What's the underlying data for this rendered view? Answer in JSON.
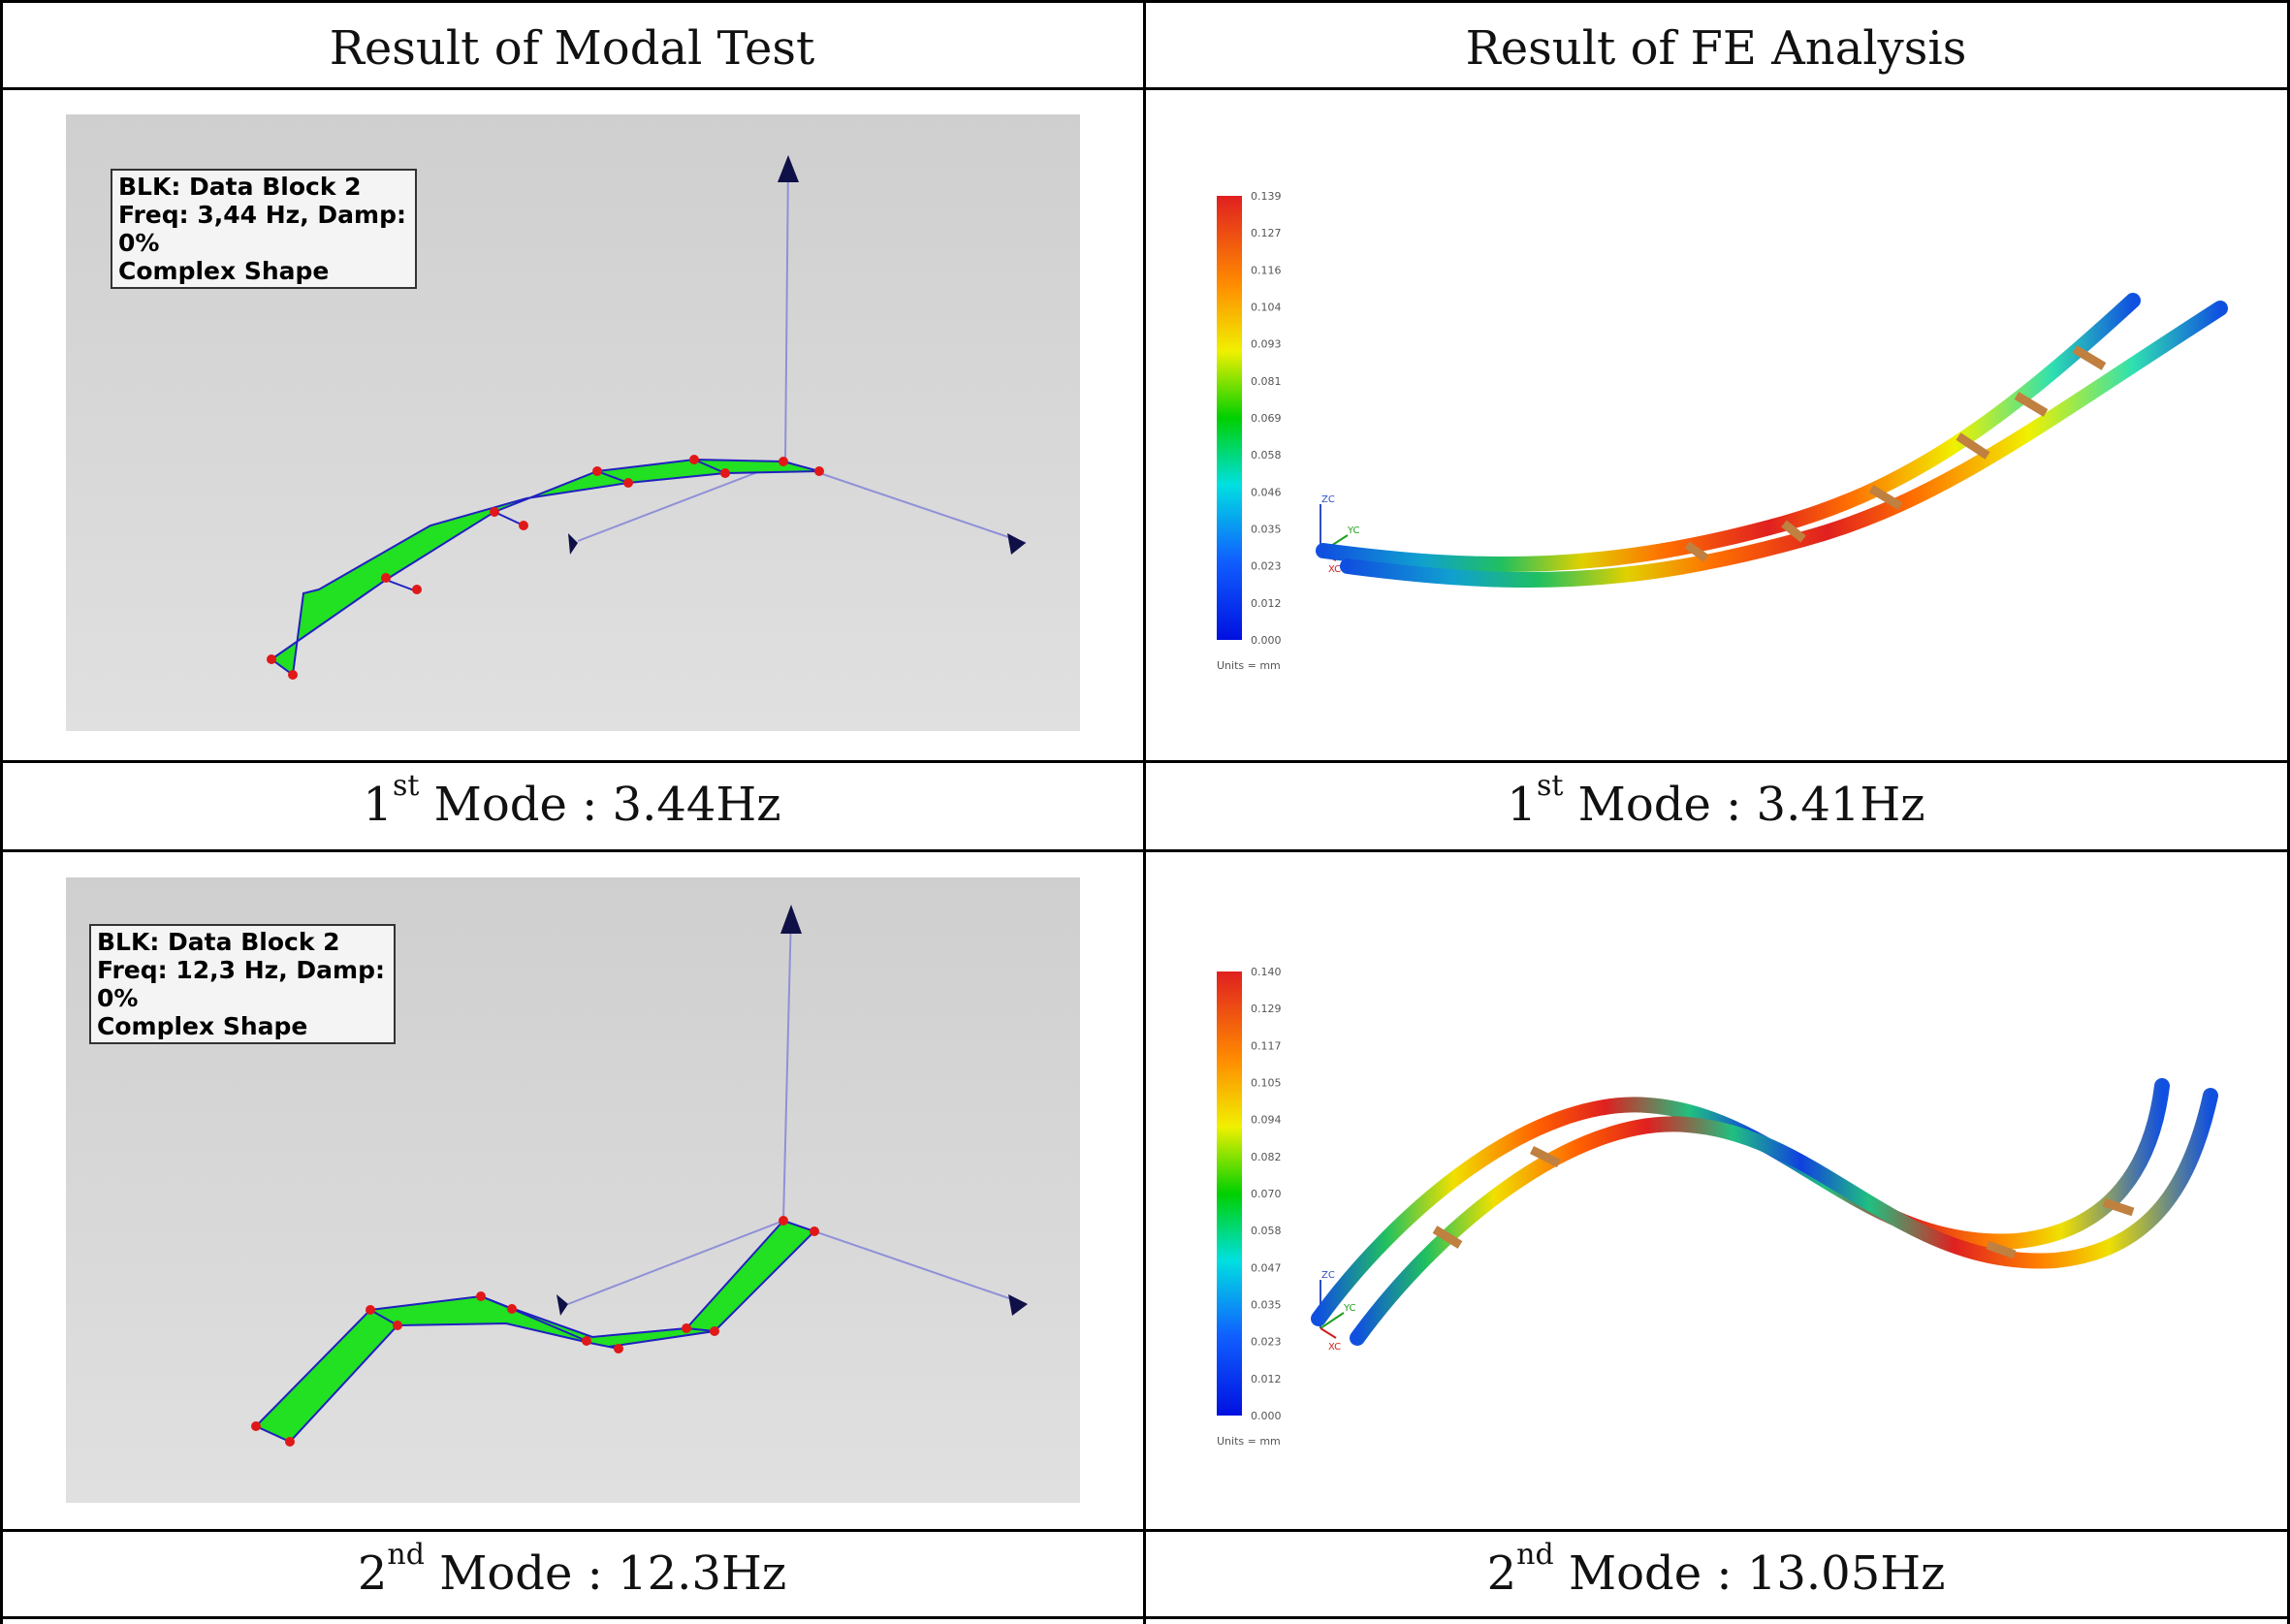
{
  "headers": {
    "left": "Result of Modal Test",
    "right": "Result of FE Analysis"
  },
  "captions": {
    "mode1_test": {
      "ordinal": "1",
      "suffix": "st",
      "text": " Mode : 3.44Hz"
    },
    "mode1_fe": {
      "ordinal": "1",
      "suffix": "st",
      "text": " Mode : 3.41Hz"
    },
    "mode2_test": {
      "ordinal": "2",
      "suffix": "nd",
      "text": " Mode : 12.3Hz"
    },
    "mode2_fe": {
      "ordinal": "2",
      "suffix": "nd",
      "text": " Mode : 13.05Hz"
    }
  },
  "modal_test_1": {
    "line1": "BLK: Data Block 2",
    "line2": "Freq: 3,44 Hz, Damp: 0%",
    "line3": "Complex Shape"
  },
  "modal_test_2": {
    "line1": "BLK: Data Block 2",
    "line2": "Freq: 12,3 Hz, Damp: 0%",
    "line3": "Complex Shape"
  },
  "fe_1": {
    "scale": [
      "0.139",
      "0.127",
      "0.116",
      "0.104",
      "0.093",
      "0.081",
      "0.069",
      "0.058",
      "0.046",
      "0.035",
      "0.023",
      "0.012",
      "0.000"
    ],
    "units": "Units = mm",
    "axes": {
      "zc": "ZC",
      "yc": "YC",
      "xc": "XC"
    }
  },
  "fe_2": {
    "scale": [
      "0.140",
      "0.129",
      "0.117",
      "0.105",
      "0.094",
      "0.082",
      "0.070",
      "0.058",
      "0.047",
      "0.035",
      "0.023",
      "0.012",
      "0.000"
    ],
    "units": "Units = mm",
    "axes": {
      "zc": "ZC",
      "yc": "YC",
      "xc": "XC"
    }
  },
  "colors": {
    "mode_shape_fill": "#22e022",
    "node_marker": "#e01818",
    "axis_line": "#9090d8",
    "axis_arrow": "#101048",
    "scale_gradient": [
      "#e02020",
      "#ff8c00",
      "#f0f000",
      "#00d000",
      "#00e0e0",
      "#1060ff",
      "#0010e0"
    ]
  }
}
